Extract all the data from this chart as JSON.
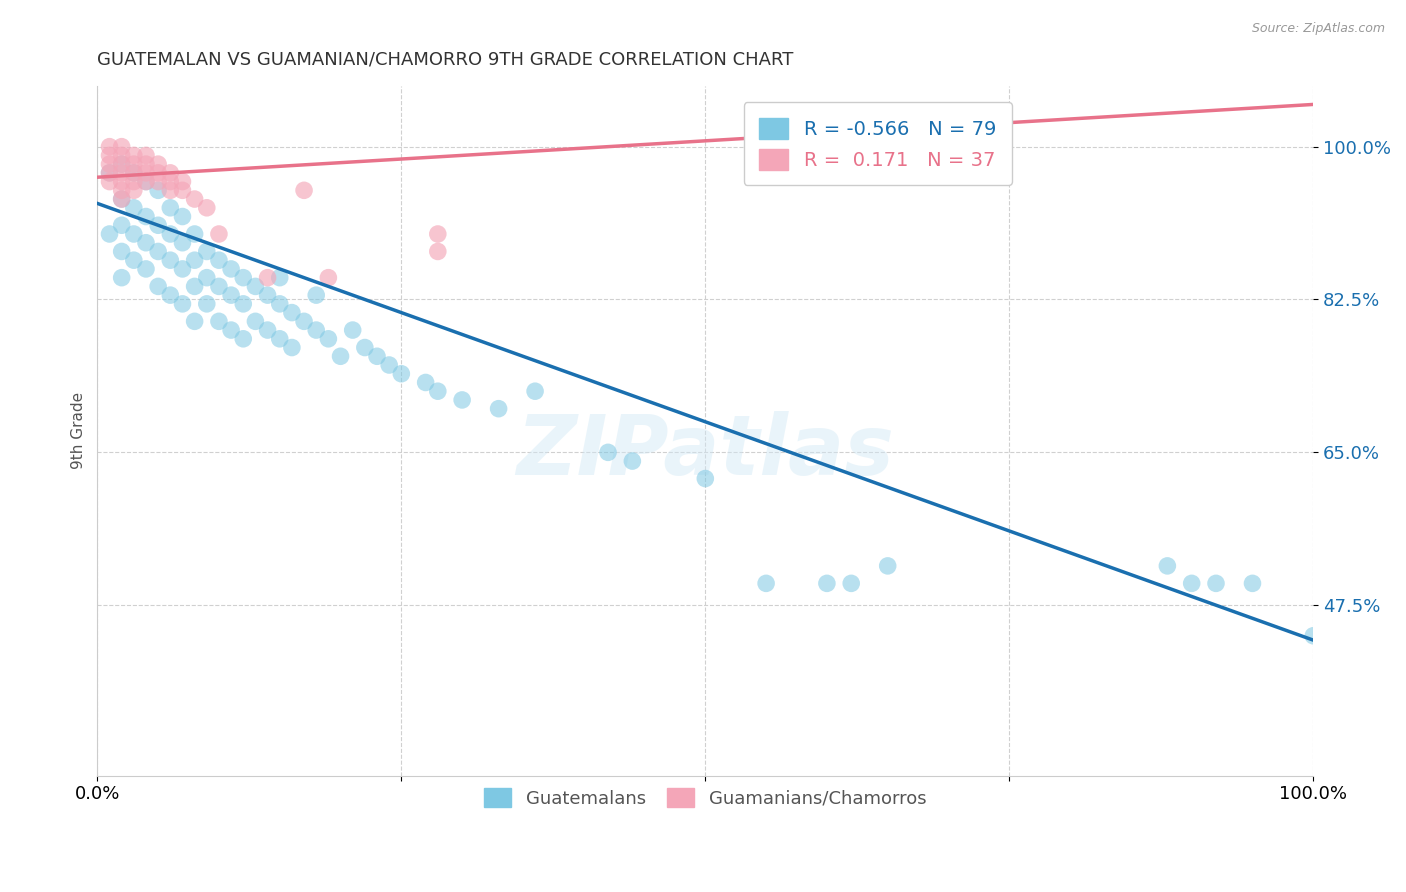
{
  "title": "GUATEMALAN VS GUAMANIAN/CHAMORRO 9TH GRADE CORRELATION CHART",
  "source": "Source: ZipAtlas.com",
  "ylabel": "9th Grade",
  "xlim": [
    0.0,
    1.0
  ],
  "ylim": [
    0.28,
    1.07
  ],
  "blue_color": "#7ec8e3",
  "pink_color": "#f4a6b8",
  "blue_line_color": "#1a6faf",
  "pink_line_color": "#e8728a",
  "R_blue": -0.566,
  "N_blue": 79,
  "R_pink": 0.171,
  "N_pink": 37,
  "blue_line_x0": 0.0,
  "blue_line_y0": 0.935,
  "blue_line_x1": 1.0,
  "blue_line_y1": 0.435,
  "pink_line_x0": 0.0,
  "pink_line_y0": 0.965,
  "pink_line_x1": 0.3,
  "pink_line_y1": 0.99,
  "blue_scatter_x": [
    0.01,
    0.01,
    0.02,
    0.02,
    0.02,
    0.02,
    0.02,
    0.03,
    0.03,
    0.03,
    0.03,
    0.04,
    0.04,
    0.04,
    0.04,
    0.05,
    0.05,
    0.05,
    0.05,
    0.06,
    0.06,
    0.06,
    0.06,
    0.07,
    0.07,
    0.07,
    0.07,
    0.08,
    0.08,
    0.08,
    0.08,
    0.09,
    0.09,
    0.09,
    0.1,
    0.1,
    0.1,
    0.11,
    0.11,
    0.11,
    0.12,
    0.12,
    0.12,
    0.13,
    0.13,
    0.14,
    0.14,
    0.15,
    0.15,
    0.15,
    0.16,
    0.16,
    0.17,
    0.18,
    0.18,
    0.19,
    0.2,
    0.21,
    0.22,
    0.23,
    0.24,
    0.25,
    0.27,
    0.28,
    0.3,
    0.33,
    0.36,
    0.42,
    0.44,
    0.5,
    0.55,
    0.6,
    0.62,
    0.65,
    0.88,
    0.9,
    0.92,
    0.95,
    1.0
  ],
  "blue_scatter_y": [
    0.97,
    0.9,
    0.98,
    0.94,
    0.91,
    0.88,
    0.85,
    0.97,
    0.93,
    0.9,
    0.87,
    0.96,
    0.92,
    0.89,
    0.86,
    0.95,
    0.91,
    0.88,
    0.84,
    0.93,
    0.9,
    0.87,
    0.83,
    0.92,
    0.89,
    0.86,
    0.82,
    0.9,
    0.87,
    0.84,
    0.8,
    0.88,
    0.85,
    0.82,
    0.87,
    0.84,
    0.8,
    0.86,
    0.83,
    0.79,
    0.85,
    0.82,
    0.78,
    0.84,
    0.8,
    0.83,
    0.79,
    0.82,
    0.85,
    0.78,
    0.81,
    0.77,
    0.8,
    0.83,
    0.79,
    0.78,
    0.76,
    0.79,
    0.77,
    0.76,
    0.75,
    0.74,
    0.73,
    0.72,
    0.71,
    0.7,
    0.72,
    0.65,
    0.64,
    0.62,
    0.5,
    0.5,
    0.5,
    0.52,
    0.52,
    0.5,
    0.5,
    0.5,
    0.44
  ],
  "pink_scatter_x": [
    0.01,
    0.01,
    0.01,
    0.01,
    0.01,
    0.02,
    0.02,
    0.02,
    0.02,
    0.02,
    0.02,
    0.02,
    0.03,
    0.03,
    0.03,
    0.03,
    0.03,
    0.04,
    0.04,
    0.04,
    0.04,
    0.05,
    0.05,
    0.05,
    0.06,
    0.06,
    0.06,
    0.07,
    0.07,
    0.08,
    0.09,
    0.1,
    0.14,
    0.17,
    0.19,
    0.28,
    0.28
  ],
  "pink_scatter_y": [
    1.0,
    0.99,
    0.98,
    0.97,
    0.96,
    1.0,
    0.99,
    0.98,
    0.97,
    0.96,
    0.95,
    0.94,
    0.99,
    0.98,
    0.97,
    0.96,
    0.95,
    0.99,
    0.98,
    0.97,
    0.96,
    0.98,
    0.97,
    0.96,
    0.97,
    0.96,
    0.95,
    0.96,
    0.95,
    0.94,
    0.93,
    0.9,
    0.85,
    0.95,
    0.85,
    0.9,
    0.88
  ],
  "watermark": "ZIPatlas",
  "background_color": "#ffffff",
  "grid_color": "#d0d0d0",
  "yticks": [
    0.475,
    0.65,
    0.825,
    1.0
  ],
  "ytick_labels": [
    "47.5%",
    "65.0%",
    "82.5%",
    "100.0%"
  ]
}
